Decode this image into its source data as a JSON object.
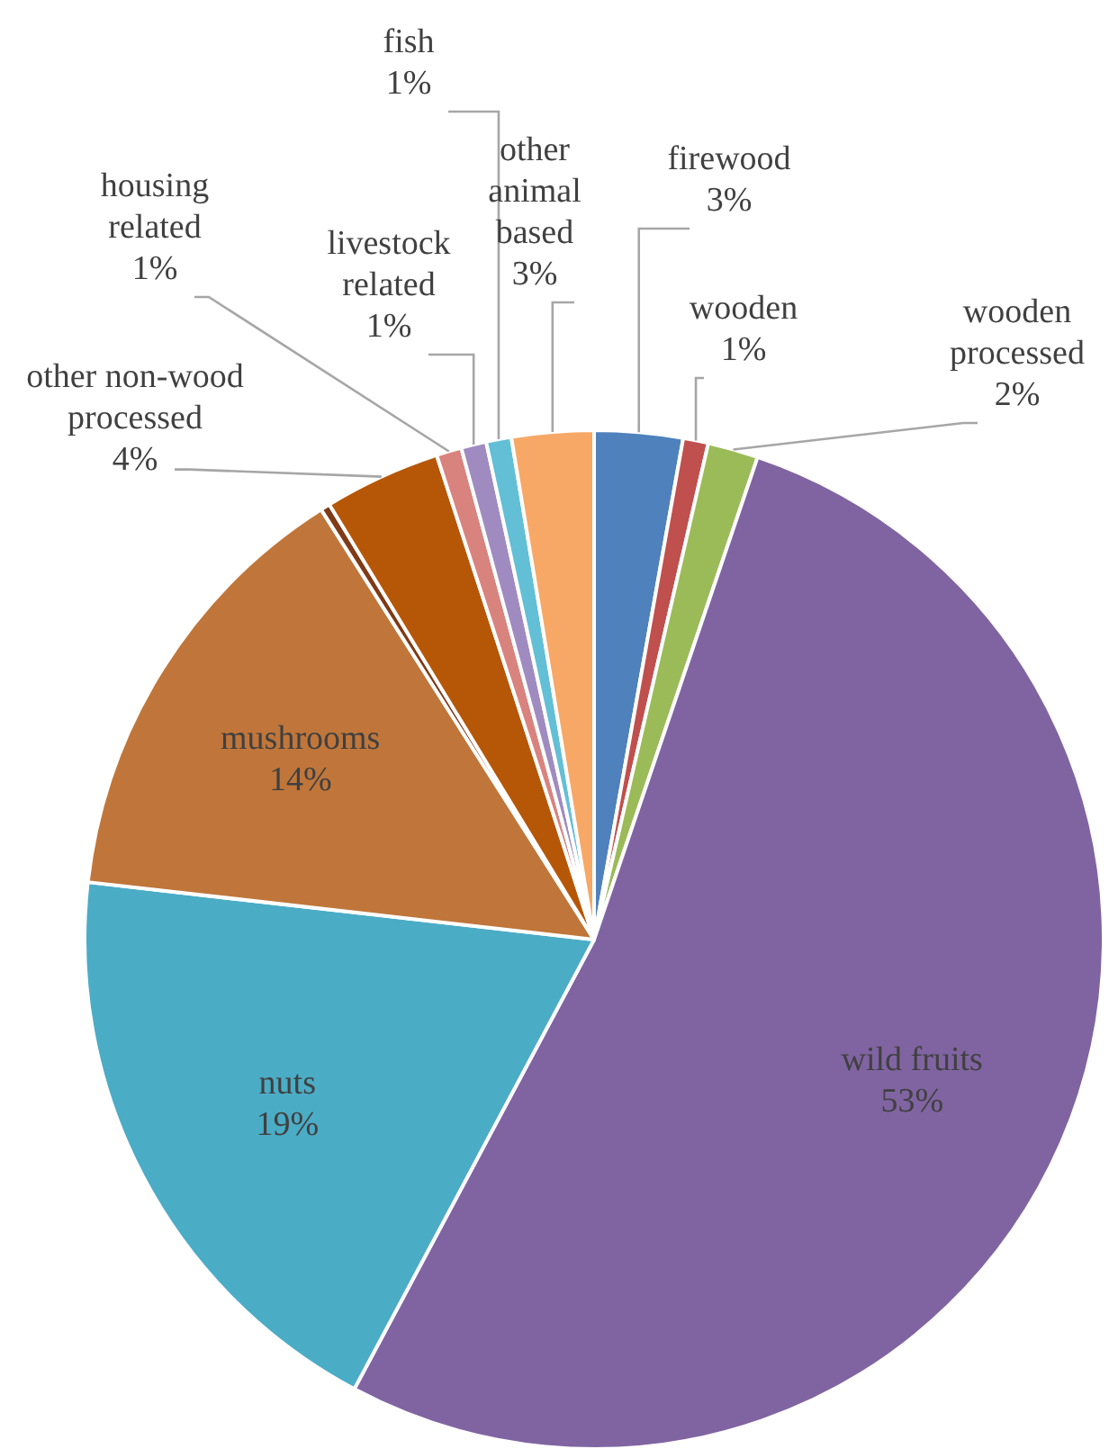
{
  "chart_data": {
    "type": "pie",
    "categories": [
      "firewood",
      "wooden",
      "wooden processed",
      "wild fruits",
      "nuts",
      "mushrooms",
      null,
      "other non-wood processed",
      "housing related",
      "livestock related",
      "fish",
      "other animal based"
    ],
    "values": [
      2.8,
      0.8,
      1.6,
      52.6,
      19.0,
      14.2,
      0.3,
      3.7,
      0.8,
      0.8,
      0.8,
      2.6
    ],
    "value_labels": [
      "3%",
      "1%",
      "2%",
      "53%",
      "19%",
      "14%",
      null,
      "4%",
      "1%",
      "1%",
      "1%",
      "3%"
    ],
    "colors": [
      "#4f81bd",
      "#c0504d",
      "#9bbb59",
      "#8064a2",
      "#4bacc6",
      "#c0763a",
      "#7f3a17",
      "#b65708",
      "#d9837f",
      "#a08bc0",
      "#63bfd6",
      "#f7a866"
    ]
  }
}
